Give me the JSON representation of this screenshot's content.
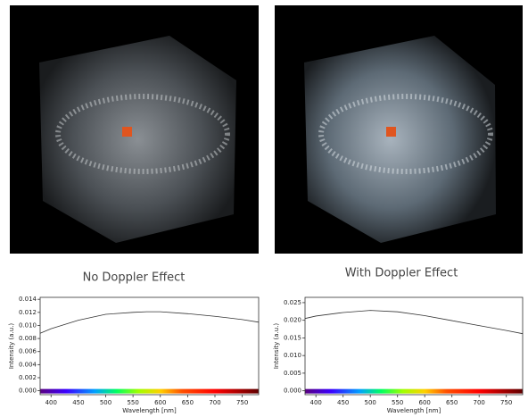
{
  "chart_data": [
    {
      "type": "line",
      "title": "No Doppler Effect",
      "x_label": "Wavelength [nm]",
      "y_label": "Intensity (a.u.)",
      "x": [
        380,
        400,
        450,
        500,
        550,
        575,
        600,
        650,
        700,
        750,
        780
      ],
      "series": [
        {
          "color": "#333333",
          "values": [
            0.0088,
            0.0095,
            0.0108,
            0.0117,
            0.012,
            0.0121,
            0.0121,
            0.0118,
            0.0114,
            0.0109,
            0.0105
          ]
        }
      ],
      "xlim": [
        380,
        780
      ],
      "xticks": [
        400,
        450,
        500,
        550,
        600,
        650,
        700,
        750
      ],
      "ylim": [
        -0.0006,
        0.0143
      ],
      "yticks": [
        {
          "value": 0,
          "label": "0.000"
        },
        {
          "value": 0.002,
          "label": "0.002"
        },
        {
          "value": 0.004,
          "label": "0.004"
        },
        {
          "value": 0.006,
          "label": "0.006"
        },
        {
          "value": 0.008,
          "label": "0.008"
        },
        {
          "value": 0.01,
          "label": "0.010"
        },
        {
          "value": 0.012,
          "label": "0.012"
        },
        {
          "value": 0.014,
          "label": "0.014"
        }
      ]
    },
    {
      "type": "line",
      "title": "With Doppler Effect",
      "x_label": "Wavelength [nm]",
      "y_label": "Intensity (a.u.)",
      "x": [
        380,
        400,
        450,
        500,
        550,
        600,
        650,
        700,
        750,
        780
      ],
      "series": [
        {
          "color": "#333333",
          "values": [
            0.0205,
            0.0212,
            0.0222,
            0.0228,
            0.0224,
            0.0213,
            0.0199,
            0.0185,
            0.0171,
            0.0162
          ]
        }
      ],
      "xlim": [
        380,
        780
      ],
      "xticks": [
        400,
        450,
        500,
        550,
        600,
        650,
        700,
        750
      ],
      "ylim": [
        -0.0011,
        0.0265
      ],
      "yticks": [
        {
          "value": 0,
          "label": "0.000"
        },
        {
          "value": 0.005,
          "label": "0.005"
        },
        {
          "value": 0.01,
          "label": "0.010"
        },
        {
          "value": 0.015,
          "label": "0.015"
        },
        {
          "value": 0.02,
          "label": "0.020"
        },
        {
          "value": 0.025,
          "label": "0.025"
        }
      ]
    }
  ]
}
